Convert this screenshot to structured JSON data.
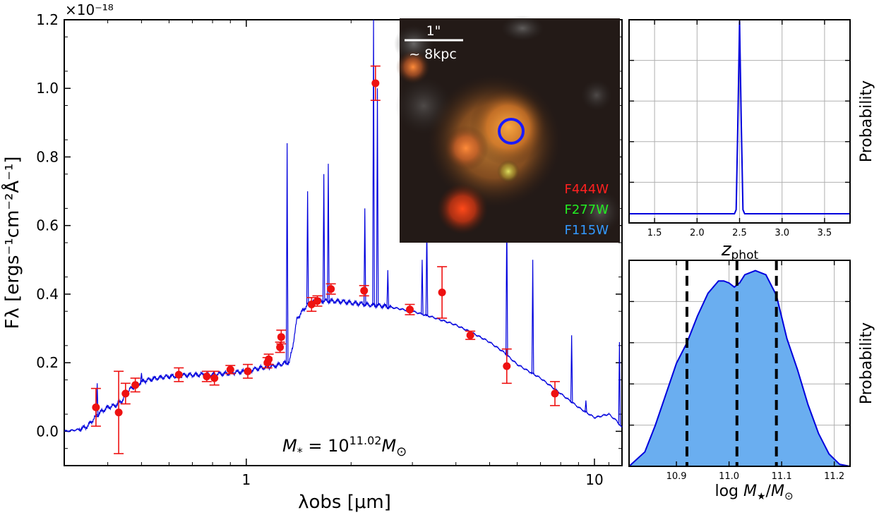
{
  "colors": {
    "model": "#0000dd",
    "photometry": "#ee1111",
    "pdf_fill": "#6aaef0",
    "f444w": "#ff2020",
    "f277w": "#22ee22",
    "f115w": "#3399ff",
    "aperture": "#1a1aff",
    "grid": "#b0b0b0"
  },
  "chart_data": [
    {
      "type": "line",
      "panel": "sed",
      "xlabel": "λobs [μm]",
      "ylabel": "Fλ [ergs⁻¹cm⁻²Å⁻¹]",
      "y_multiplier": "×10⁻¹⁸",
      "xscale": "log",
      "xlim": [
        0.3,
        12
      ],
      "ylim": [
        -0.1,
        1.2
      ],
      "x_tick_labels": [
        {
          "value": 1,
          "label": "1"
        },
        {
          "value": 10,
          "label": "10"
        }
      ],
      "y_tick_labels": [
        {
          "value": 0.0,
          "label": "0.0"
        },
        {
          "value": 0.2,
          "label": "0.2"
        },
        {
          "value": 0.4,
          "label": "0.4"
        },
        {
          "value": 0.6,
          "label": "0.6"
        },
        {
          "value": 0.8,
          "label": "0.8"
        },
        {
          "value": 1.0,
          "label": "1.0"
        },
        {
          "value": 1.2,
          "label": "1.2"
        }
      ],
      "annotation": {
        "prefix": "M",
        "sub": "*",
        "mid": " = 10",
        "sup": "11.02",
        "after": "M",
        "after_sub": "⊙"
      },
      "model_continuum": {
        "x": [
          0.3,
          0.33,
          0.35,
          0.36,
          0.38,
          0.4,
          0.42,
          0.44,
          0.46,
          0.5,
          0.55,
          0.6,
          0.7,
          0.8,
          0.9,
          1.0,
          1.1,
          1.2,
          1.3,
          1.33,
          1.36,
          1.4,
          1.5,
          1.6,
          1.8,
          2.0,
          2.2,
          2.5,
          3.0,
          3.5,
          4.0,
          4.5,
          5.0,
          5.5,
          6.0,
          7.0,
          8.0,
          9.0,
          10.0,
          11.0,
          11.6,
          12.0
        ],
        "y": [
          0.0,
          0.005,
          0.015,
          0.03,
          0.055,
          0.07,
          0.075,
          0.09,
          0.12,
          0.145,
          0.155,
          0.16,
          0.165,
          0.165,
          0.17,
          0.175,
          0.185,
          0.19,
          0.2,
          0.2,
          0.25,
          0.33,
          0.37,
          0.38,
          0.38,
          0.375,
          0.37,
          0.365,
          0.35,
          0.33,
          0.31,
          0.285,
          0.26,
          0.23,
          0.195,
          0.155,
          0.11,
          0.07,
          0.04,
          0.05,
          0.03,
          0.01
        ]
      },
      "model_lines": [
        {
          "x": 0.373,
          "peak": 0.14
        },
        {
          "x": 0.5,
          "peak": 0.17
        },
        {
          "x": 1.31,
          "peak": 0.84
        },
        {
          "x": 1.5,
          "peak": 0.7
        },
        {
          "x": 1.67,
          "peak": 0.75
        },
        {
          "x": 1.72,
          "peak": 0.78
        },
        {
          "x": 2.19,
          "peak": 0.65
        },
        {
          "x": 2.32,
          "peak": 1.2
        },
        {
          "x": 2.38,
          "peak": 1.0
        },
        {
          "x": 2.55,
          "peak": 0.47
        },
        {
          "x": 3.2,
          "peak": 0.5
        },
        {
          "x": 3.3,
          "peak": 0.6
        },
        {
          "x": 5.6,
          "peak": 0.64
        },
        {
          "x": 6.65,
          "peak": 0.5
        },
        {
          "x": 8.6,
          "peak": 0.28
        },
        {
          "x": 9.45,
          "peak": 0.09
        },
        {
          "x": 11.8,
          "peak": 0.26
        }
      ],
      "photometry": [
        {
          "x": 0.37,
          "y": 0.07,
          "err": 0.055
        },
        {
          "x": 0.43,
          "y": 0.055,
          "err": 0.12
        },
        {
          "x": 0.45,
          "y": 0.11,
          "err": 0.03
        },
        {
          "x": 0.48,
          "y": 0.135,
          "err": 0.02
        },
        {
          "x": 0.64,
          "y": 0.165,
          "err": 0.02
        },
        {
          "x": 0.77,
          "y": 0.16,
          "err": 0.015
        },
        {
          "x": 0.81,
          "y": 0.155,
          "err": 0.02
        },
        {
          "x": 0.9,
          "y": 0.18,
          "err": 0.012
        },
        {
          "x": 1.01,
          "y": 0.175,
          "err": 0.02
        },
        {
          "x": 1.15,
          "y": 0.2,
          "err": 0.015
        },
        {
          "x": 1.16,
          "y": 0.21,
          "err": 0.015
        },
        {
          "x": 1.25,
          "y": 0.245,
          "err": 0.015
        },
        {
          "x": 1.26,
          "y": 0.275,
          "err": 0.02
        },
        {
          "x": 1.54,
          "y": 0.37,
          "err": 0.02
        },
        {
          "x": 1.6,
          "y": 0.38,
          "err": 0.015
        },
        {
          "x": 1.75,
          "y": 0.415,
          "err": 0.015
        },
        {
          "x": 2.18,
          "y": 0.41,
          "err": 0.015
        },
        {
          "x": 2.35,
          "y": 1.015,
          "err": 0.05
        },
        {
          "x": 2.95,
          "y": 0.355,
          "err": 0.015
        },
        {
          "x": 3.65,
          "y": 0.405,
          "err": 0.075
        },
        {
          "x": 4.4,
          "y": 0.28,
          "err": 0.012
        },
        {
          "x": 5.6,
          "y": 0.19,
          "err": 0.05
        },
        {
          "x": 7.7,
          "y": 0.11,
          "err": 0.035
        }
      ]
    },
    {
      "type": "line",
      "panel": "zphot",
      "xlabel": "zphot",
      "ylabel": "Probability",
      "xlim": [
        1.2,
        3.8
      ],
      "ylim": [
        0,
        1.0
      ],
      "grid": true,
      "x_tick_labels": [
        {
          "value": 1.5,
          "label": "1.5"
        },
        {
          "value": 2.0,
          "label": "2.0"
        },
        {
          "value": 2.5,
          "label": "2.5"
        },
        {
          "value": 3.0,
          "label": "3.0"
        },
        {
          "value": 3.5,
          "label": "3.5"
        }
      ],
      "x": [
        1.2,
        2.44,
        2.46,
        2.48,
        2.5,
        2.52,
        2.54,
        2.56,
        3.8
      ],
      "y": [
        0.0,
        0.0,
        0.02,
        0.45,
        0.95,
        0.45,
        0.02,
        0.0,
        0.0
      ]
    },
    {
      "type": "area",
      "panel": "mass",
      "xlabel": "log M★/M⊙",
      "ylabel": "Probability",
      "xlim": [
        10.81,
        11.23
      ],
      "ylim": [
        0,
        1.0
      ],
      "grid": true,
      "x_tick_labels": [
        {
          "value": 10.9,
          "label": "10.9"
        },
        {
          "value": 11.0,
          "label": "11.0"
        },
        {
          "value": 11.1,
          "label": "11.1"
        },
        {
          "value": 11.2,
          "label": "11.2"
        }
      ],
      "x": [
        10.81,
        10.84,
        10.86,
        10.88,
        10.9,
        10.92,
        10.94,
        10.96,
        10.98,
        10.99,
        11.0,
        11.01,
        11.02,
        11.03,
        11.05,
        11.07,
        11.09,
        11.11,
        11.13,
        11.15,
        11.17,
        11.19,
        11.21,
        11.23
      ],
      "y": [
        0.0,
        0.07,
        0.2,
        0.35,
        0.5,
        0.6,
        0.73,
        0.84,
        0.9,
        0.9,
        0.89,
        0.87,
        0.89,
        0.93,
        0.95,
        0.93,
        0.83,
        0.62,
        0.47,
        0.3,
        0.16,
        0.06,
        0.01,
        0.0
      ],
      "percentile_lines": [
        10.92,
        11.015,
        11.09
      ]
    }
  ],
  "image_inset": {
    "scale_bar_label": "1\"",
    "physical_label": "~ 8kpc",
    "filters": [
      "F444W",
      "F277W",
      "F115W"
    ]
  }
}
